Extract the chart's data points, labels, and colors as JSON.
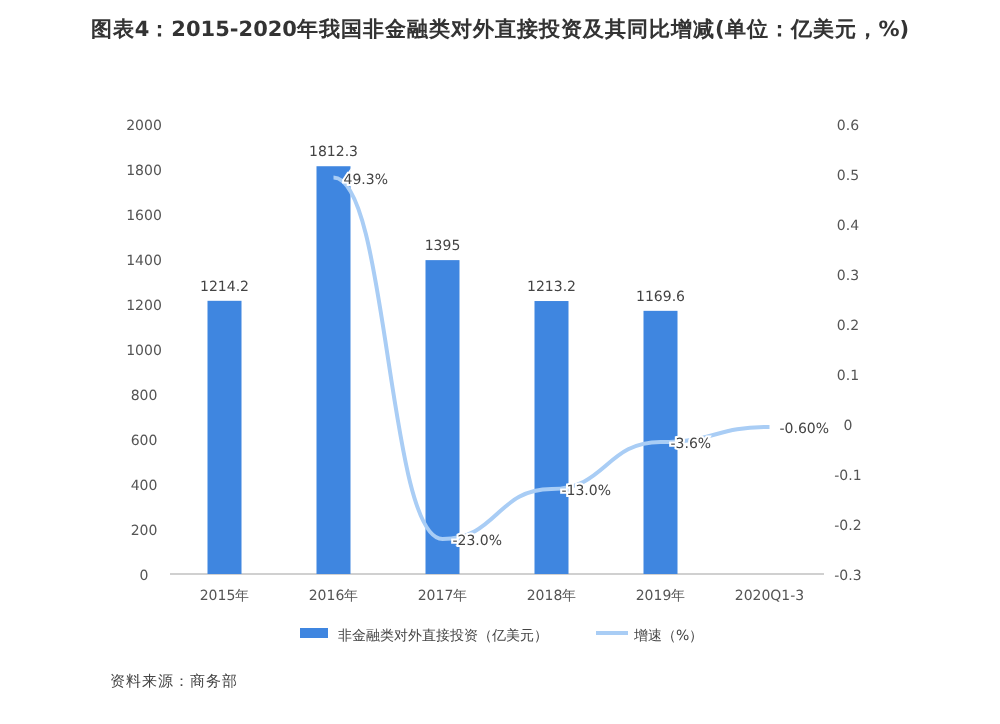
{
  "chart_data": {
    "type": "bar",
    "title": "图表4：2015-2020年我国非金融类对外直接投资及其同比增减(单位：亿美元，%)",
    "categories": [
      "2015年",
      "2016年",
      "2017年",
      "2018年",
      "2019年",
      "2020Q1-3"
    ],
    "series": [
      {
        "name": "非金融类对外直接投资（亿美元）",
        "color": "#3f86e0",
        "values": [
          1214.2,
          1812.3,
          1395,
          1213.2,
          1169.6,
          null
        ],
        "value_labels": [
          "1214.2",
          "1812.3",
          "1395",
          "1213.2",
          "1169.6",
          null
        ]
      },
      {
        "name": "增速（%）",
        "type": "line",
        "axis": "y2",
        "color": "#a9cdf5",
        "values": [
          null,
          0.493,
          -0.23,
          -0.13,
          -0.036,
          -0.006
        ],
        "value_labels": [
          null,
          "49.3%",
          "-23.0%",
          "-13.0%",
          "-3.6%",
          "-0.60%"
        ]
      }
    ],
    "ylim": [
      0,
      2000
    ],
    "yticks": [
      0,
      200,
      400,
      600,
      800,
      1000,
      1200,
      1400,
      1600,
      1800,
      2000
    ],
    "y2lim": [
      -0.3,
      0.6
    ],
    "y2ticks": [
      -0.3,
      -0.2,
      -0.1,
      0,
      0.1,
      0.2,
      0.3,
      0.4,
      0.5,
      0.6
    ],
    "grid": false,
    "legend": "bottom",
    "annotations": [
      "资料来源：商务部"
    ]
  }
}
